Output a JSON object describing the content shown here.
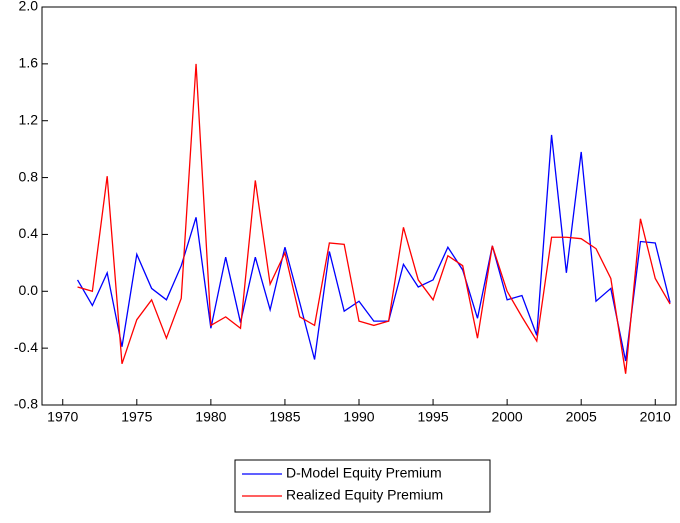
{
  "chart_data": {
    "type": "line",
    "x": [
      1971,
      1972,
      1973,
      1974,
      1975,
      1976,
      1977,
      1978,
      1979,
      1980,
      1981,
      1982,
      1983,
      1984,
      1985,
      1986,
      1987,
      1988,
      1989,
      1990,
      1991,
      1992,
      1993,
      1994,
      1995,
      1996,
      1997,
      1998,
      1999,
      2000,
      2001,
      2002,
      2003,
      2004,
      2005,
      2006,
      2007,
      2008,
      2009,
      2010,
      2011
    ],
    "series": [
      {
        "name": "D-Model Equity Premium",
        "color": "#0000ff",
        "values": [
          0.08,
          -0.1,
          0.13,
          -0.39,
          0.26,
          0.02,
          -0.06,
          0.18,
          0.52,
          -0.26,
          0.24,
          -0.22,
          0.24,
          -0.13,
          0.31,
          -0.08,
          -0.48,
          0.28,
          -0.14,
          -0.07,
          -0.21,
          -0.21,
          0.19,
          0.03,
          0.08,
          0.31,
          0.15,
          -0.19,
          0.32,
          -0.06,
          -0.03,
          -0.31,
          1.1,
          0.13,
          0.98,
          -0.07,
          0.02,
          -0.49,
          0.35,
          0.34,
          -0.08
        ]
      },
      {
        "name": "Realized Equity Premium",
        "color": "#ff0000",
        "values": [
          0.03,
          0.0,
          0.81,
          -0.51,
          -0.2,
          -0.06,
          -0.33,
          -0.05,
          1.6,
          -0.24,
          -0.18,
          -0.26,
          0.78,
          0.05,
          0.27,
          -0.18,
          -0.24,
          0.34,
          0.33,
          -0.21,
          -0.24,
          -0.21,
          0.45,
          0.08,
          -0.06,
          0.25,
          0.18,
          -0.33,
          0.32,
          0.0,
          -0.18,
          -0.35,
          0.38,
          0.38,
          0.37,
          0.3,
          0.09,
          -0.58,
          0.51,
          0.09,
          -0.09
        ]
      }
    ],
    "xlim": [
      1968.6,
      2011.4
    ],
    "xticks": [
      1970,
      1975,
      1980,
      1985,
      1990,
      1995,
      2000,
      2005,
      2010
    ],
    "ylim": [
      -0.8,
      2.0
    ],
    "yticks": [
      {
        "value": 2.0,
        "label": "2.0"
      },
      1.6,
      1.2,
      0.8,
      0.4,
      {
        "value": 0.0,
        "label": "0.0"
      },
      -0.4,
      -0.8
    ],
    "grid": false,
    "legend": "bottom"
  }
}
